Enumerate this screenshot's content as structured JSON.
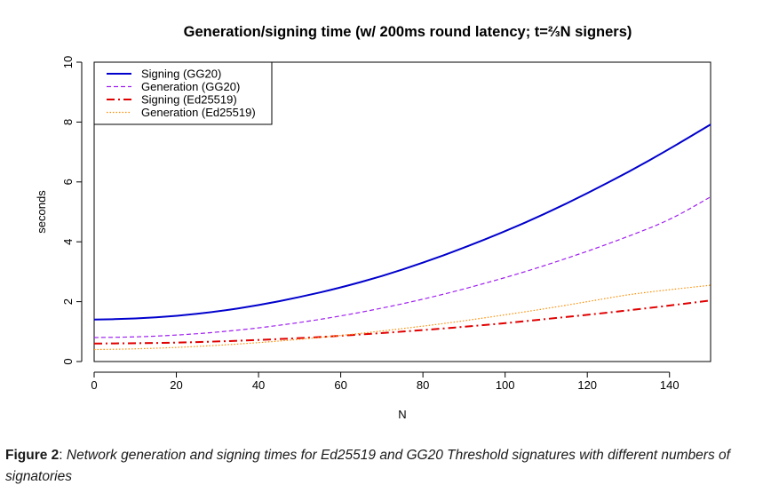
{
  "chart_data": {
    "type": "line",
    "title": "Generation/signing time (w/ 200ms round latency; t=⅔N signers)",
    "xlabel": "N",
    "ylabel": "seconds",
    "xlim": [
      0,
      150
    ],
    "ylim": [
      0,
      10
    ],
    "x_ticks": [
      0,
      20,
      40,
      60,
      80,
      100,
      120,
      140
    ],
    "y_ticks": [
      0,
      2,
      4,
      6,
      8,
      10
    ],
    "grid": false,
    "legend_position": "top-left",
    "x": [
      0,
      10,
      20,
      30,
      40,
      50,
      60,
      70,
      80,
      90,
      100,
      110,
      120,
      130,
      140,
      150
    ],
    "series": [
      {
        "name": "Signing (GG20)",
        "color": "#0000cd",
        "line_style": "solid",
        "values": [
          1.4,
          1.43,
          1.52,
          1.67,
          1.88,
          2.15,
          2.47,
          2.85,
          3.3,
          3.8,
          4.35,
          4.95,
          5.62,
          6.33,
          7.1,
          7.92
        ]
      },
      {
        "name": "Generation (GG20)",
        "color": "#a020f0",
        "line_style": "dashed",
        "values": [
          0.8,
          0.82,
          0.88,
          0.98,
          1.12,
          1.3,
          1.52,
          1.78,
          2.08,
          2.42,
          2.8,
          3.22,
          3.68,
          4.18,
          4.72,
          5.5
        ]
      },
      {
        "name": "Signing (Ed25519)",
        "color": "#e00000",
        "line_style": "dashdot",
        "values": [
          0.6,
          0.61,
          0.63,
          0.67,
          0.72,
          0.78,
          0.86,
          0.95,
          1.05,
          1.16,
          1.28,
          1.42,
          1.56,
          1.71,
          1.87,
          2.04
        ]
      },
      {
        "name": "Generation (Ed25519)",
        "color": "#ff8c00",
        "line_style": "dotted",
        "values": [
          0.4,
          0.42,
          0.47,
          0.54,
          0.63,
          0.74,
          0.87,
          1.02,
          1.18,
          1.36,
          1.56,
          1.77,
          2.0,
          2.24,
          2.4,
          2.55
        ]
      }
    ]
  },
  "caption": {
    "lead": "Figure 2",
    "body": "Network generation and signing times for Ed25519 and GG20 Threshold signatures with different numbers of signatories"
  }
}
